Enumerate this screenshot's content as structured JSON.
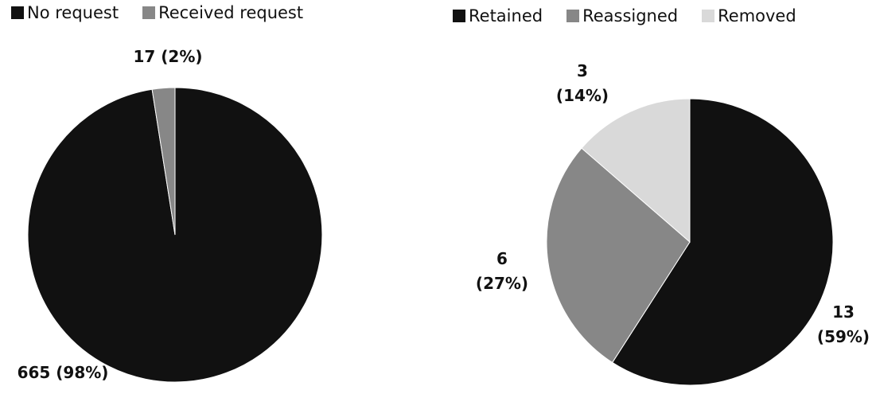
{
  "chart_data": [
    {
      "type": "pie",
      "legend_position": "top-left",
      "categories": [
        "No request",
        "Received request"
      ],
      "values": [
        665,
        17
      ],
      "colors": [
        "#111111",
        "#878787"
      ],
      "data_labels": [
        {
          "value": "665",
          "percent": "(98%)"
        },
        {
          "value": "17",
          "percent": "(2%)"
        }
      ]
    },
    {
      "type": "pie",
      "legend_position": "top-right",
      "categories": [
        "Retained",
        "Reassigned",
        "Removed"
      ],
      "values": [
        13,
        6,
        3
      ],
      "colors": [
        "#111111",
        "#878787",
        "#d9d9d9"
      ],
      "data_labels": [
        {
          "value": "13",
          "percent": "(59%)"
        },
        {
          "value": "6",
          "percent": "(27%)"
        },
        {
          "value": "3",
          "percent": "(14%)"
        }
      ]
    }
  ]
}
